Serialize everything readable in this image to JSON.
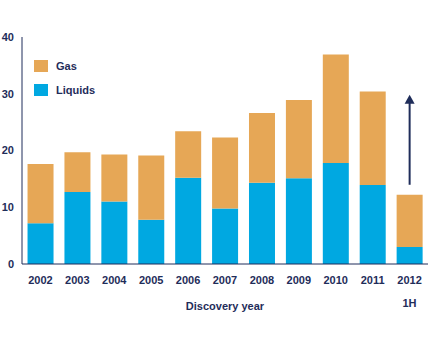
{
  "chart_data": {
    "type": "bar",
    "stacked": true,
    "grid": false,
    "legend": "top-left",
    "x_label": "Discovery year",
    "categories": [
      "2002",
      "2003",
      "2004",
      "2005",
      "2006",
      "2007",
      "2008",
      "2009",
      "2010",
      "2011",
      "2012"
    ],
    "annotations": [
      {
        "category": "2012",
        "text": "1H"
      }
    ],
    "series": [
      {
        "name": "Liquids",
        "color": "#00a8e1",
        "values": [
          7.2,
          12.7,
          11.0,
          7.8,
          15.2,
          9.8,
          14.3,
          15.1,
          17.8,
          13.9,
          3.0
        ]
      },
      {
        "name": "Gas",
        "color": "#e6a756",
        "values": [
          10.4,
          7.0,
          8.3,
          11.3,
          8.2,
          12.5,
          12.3,
          13.8,
          19.1,
          16.5,
          9.2
        ]
      }
    ],
    "ylim": [
      0,
      40
    ],
    "yticks": [
      0,
      10,
      20,
      30,
      40
    ]
  }
}
